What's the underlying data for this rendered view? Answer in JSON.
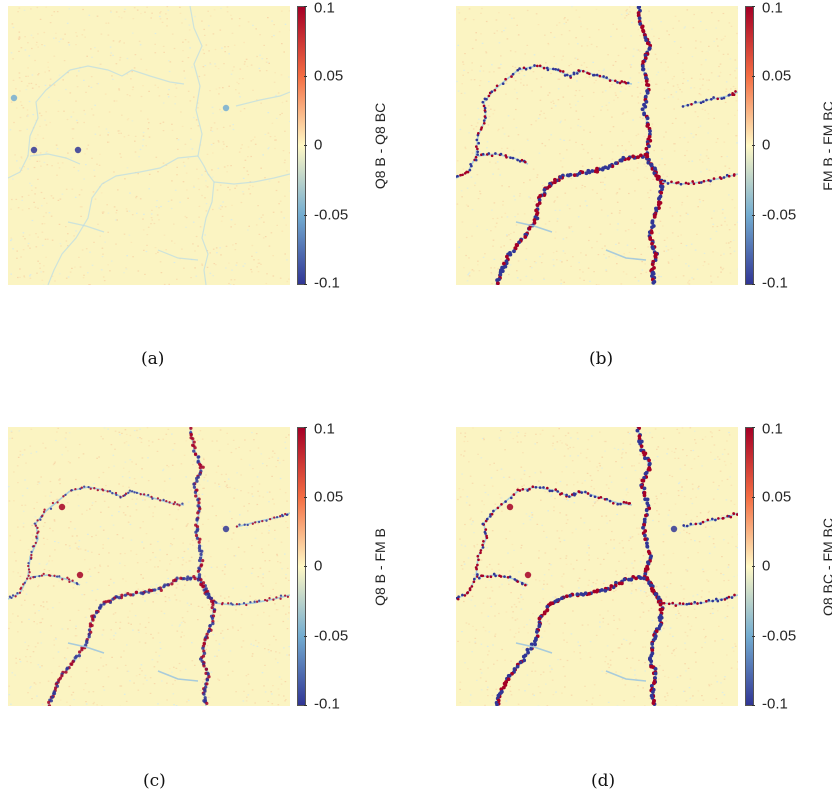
{
  "chart_data": [
    {
      "type": "heatmap",
      "caption": "(a)",
      "colorbar_label": "Q8 B - Q8 BC",
      "colorbar_ticks": [
        "0.1",
        "0.05",
        "0",
        "-0.05",
        "-0.1"
      ],
      "clim": [
        -0.1,
        0.1
      ],
      "colormap": "diverging red-yellow-blue",
      "crack_intensity": 0.15
    },
    {
      "type": "heatmap",
      "caption": "(b)",
      "colorbar_label": "FM B - FM BC",
      "colorbar_ticks": [
        "0.1",
        "0.05",
        "0",
        "-0.05",
        "-0.1"
      ],
      "clim": [
        -0.1,
        0.1
      ],
      "colormap": "diverging red-yellow-blue",
      "crack_intensity": 1.0
    },
    {
      "type": "heatmap",
      "caption": "(c)",
      "colorbar_label": "Q8 B - FM B",
      "colorbar_ticks": [
        "0.1",
        "0.05",
        "0",
        "-0.05",
        "-0.1"
      ],
      "clim": [
        -0.1,
        0.1
      ],
      "colormap": "diverging red-yellow-blue",
      "crack_intensity": 0.7
    },
    {
      "type": "heatmap",
      "caption": "(d)",
      "colorbar_label": "Q8 BC - FM BC",
      "colorbar_ticks": [
        "0.1",
        "0.05",
        "0",
        "-0.05",
        "-0.1"
      ],
      "clim": [
        -0.1,
        0.1
      ],
      "colormap": "diverging red-yellow-blue",
      "crack_intensity": 1.0
    }
  ],
  "colors": {
    "background": "#fbf4c2",
    "high": "#a50026",
    "mid_high": "#f46d43",
    "mid": "#fff8c4",
    "mid_low": "#74add1",
    "low": "#313695"
  }
}
